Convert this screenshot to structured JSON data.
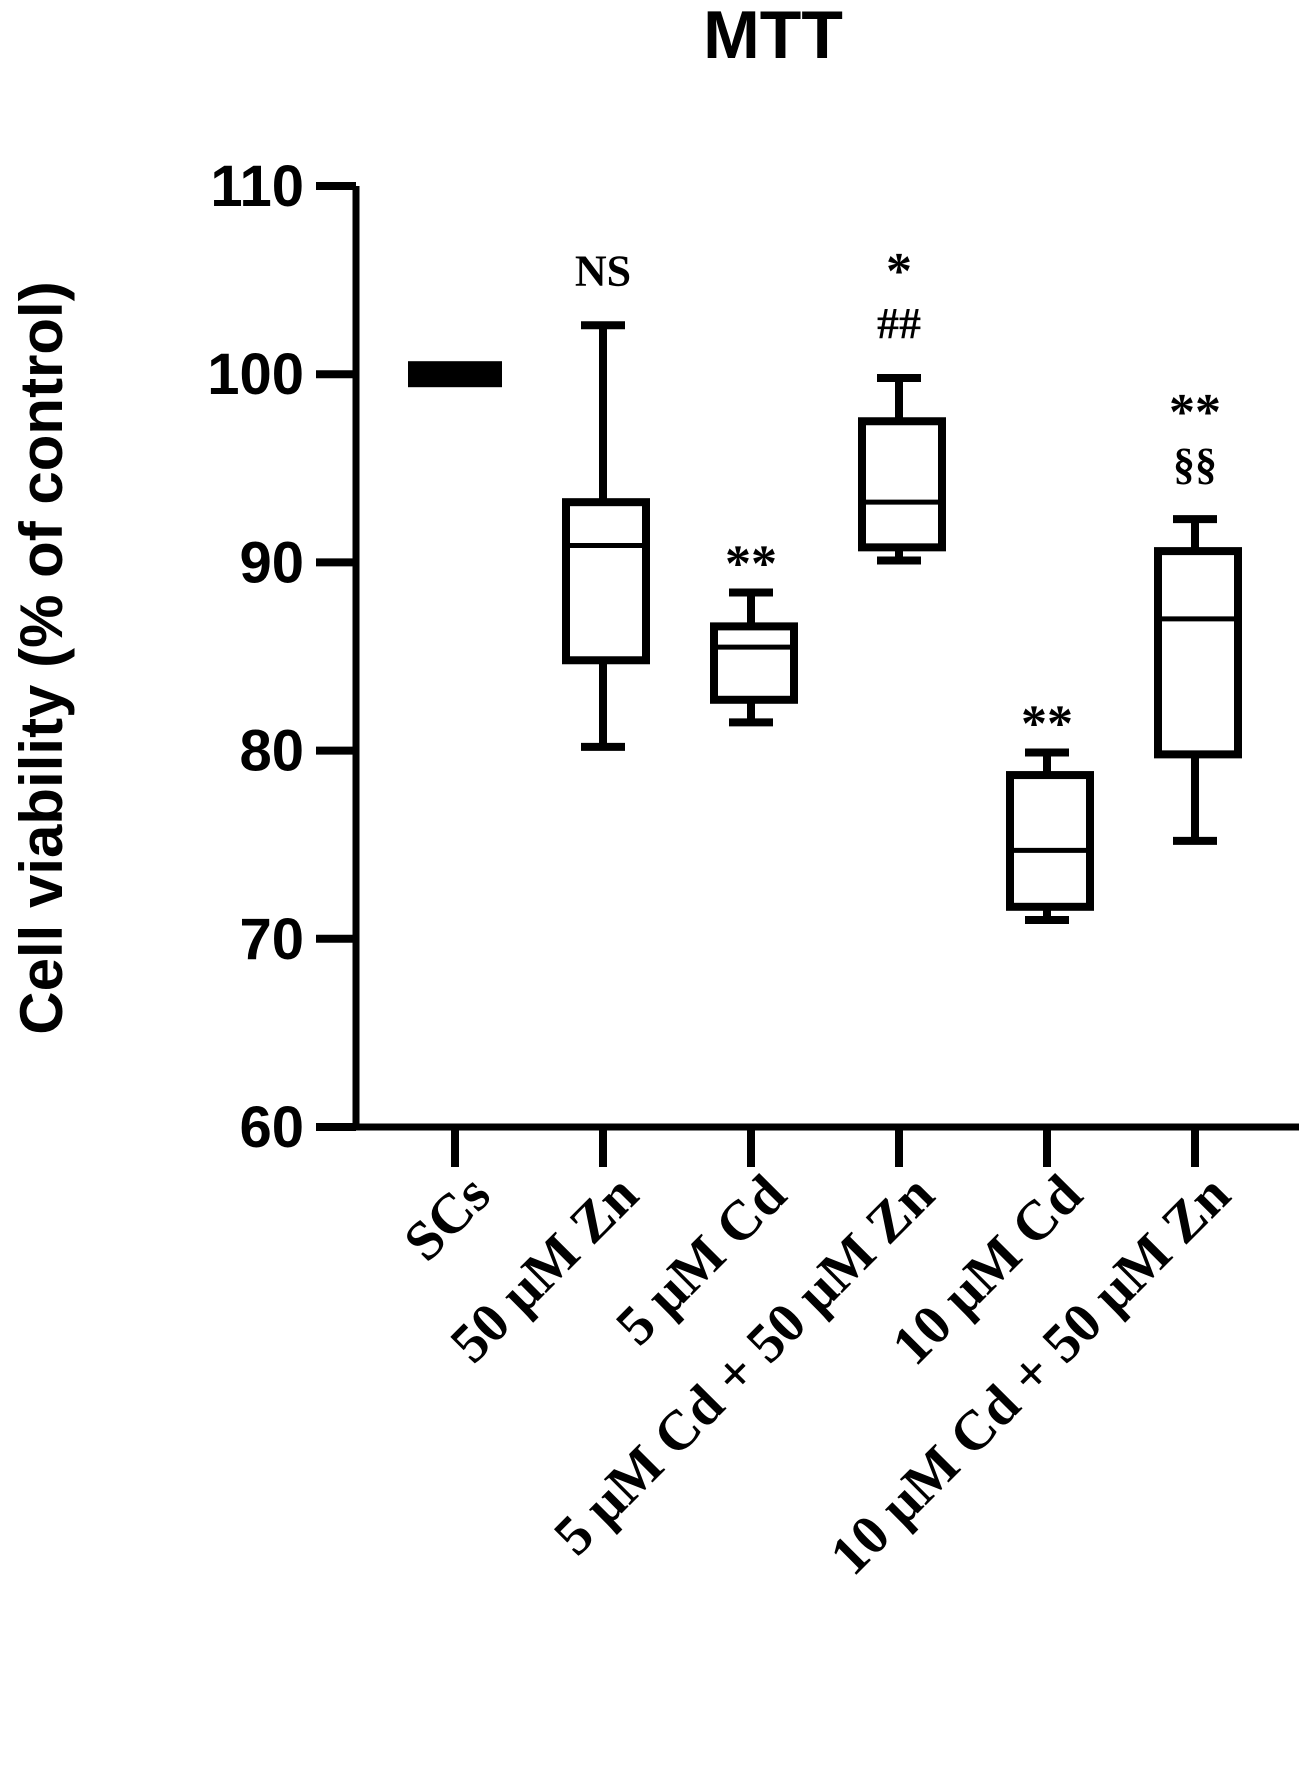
{
  "chart_data": {
    "type": "box",
    "title": "MTT",
    "xlabel": "",
    "ylabel": "Cell viability (% of control)",
    "ylim": [
      60,
      110
    ],
    "yticks": [
      60,
      70,
      80,
      90,
      100,
      110
    ],
    "grid": false,
    "legend": "none",
    "categories": [
      "SCs",
      "50 μM Zn",
      "5 μM Cd",
      "5 μM Cd +  50 μM Zn",
      "10 μM Cd",
      "10 μM Cd + 50 μM Zn"
    ],
    "boxes": [
      {
        "min": 100,
        "q1": 100,
        "median": 100,
        "q3": 100,
        "max": 100,
        "annotations": []
      },
      {
        "min": 80.2,
        "q1": 84.8,
        "median": 90.9,
        "q3": 93.2,
        "max": 102.6,
        "annotations": [
          "NS"
        ]
      },
      {
        "min": 81.5,
        "q1": 82.7,
        "median": 85.5,
        "q3": 86.6,
        "max": 88.4,
        "annotations": [
          "**"
        ]
      },
      {
        "min": 90.1,
        "q1": 90.8,
        "median": 93.2,
        "q3": 97.5,
        "max": 99.8,
        "annotations": [
          "*",
          "##"
        ]
      },
      {
        "min": 71.0,
        "q1": 71.7,
        "median": 74.7,
        "q3": 78.7,
        "max": 79.9,
        "annotations": [
          "**"
        ]
      },
      {
        "min": 75.2,
        "q1": 79.8,
        "median": 87.0,
        "q3": 90.6,
        "max": 92.3,
        "annotations": [
          "**",
          "§§"
        ]
      }
    ]
  },
  "colors": {
    "ink": "#000000",
    "background": "#ffffff"
  }
}
